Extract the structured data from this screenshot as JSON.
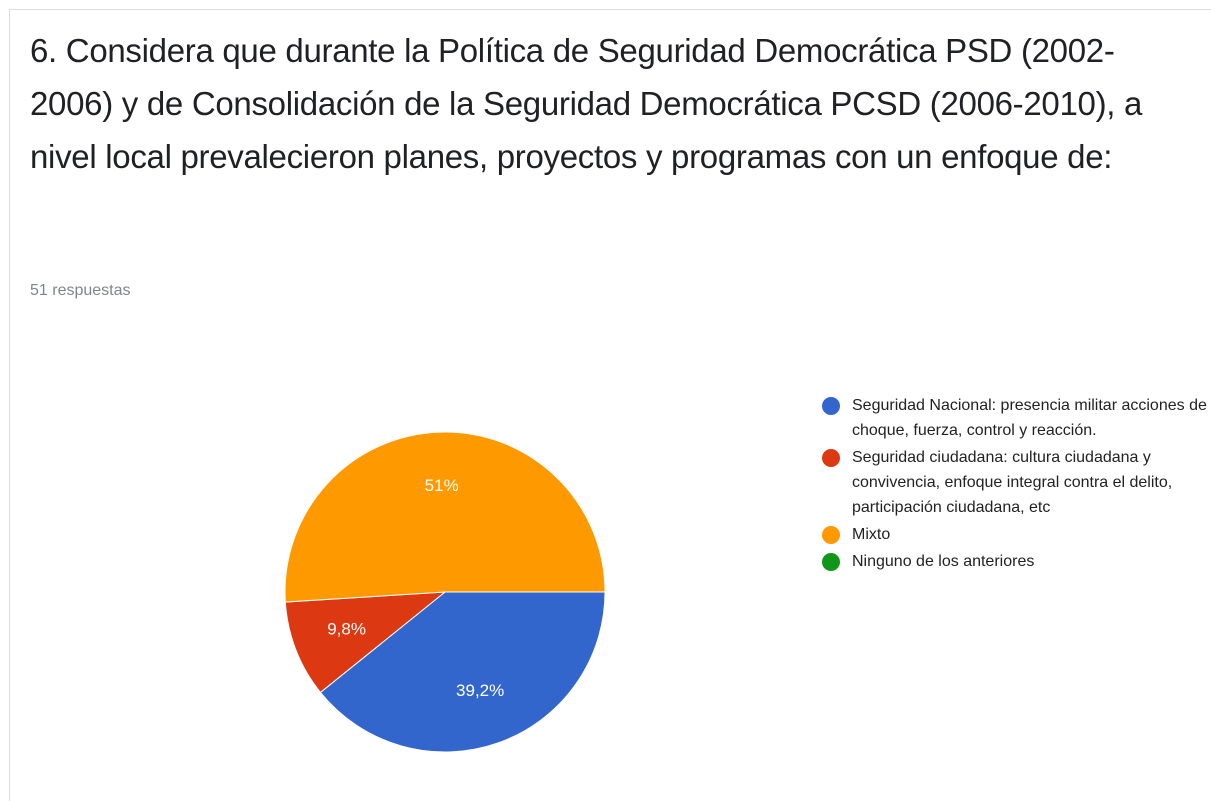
{
  "chart_data": {
    "type": "pie",
    "title": "6. Considera que durante la Política de Seguridad Democrática PSD (2002-2006) y de Consolidación de la Seguridad Democrática PCSD (2006-2010), a nivel local prevalecieron planes, proyectos y programas con un enfoque de:",
    "subtitle": "51 respuestas",
    "categories": [
      "Seguridad Nacional: presencia militar acciones de choque, fuerza, control y reacción.",
      "Seguridad ciudadana: cultura ciudadana y convivencia, enfoque integral contra el delito, participación ciudadana, etc",
      "Mixto",
      "Ninguno de los anteriores"
    ],
    "values": [
      39.2,
      9.8,
      51,
      0
    ],
    "value_labels": [
      "39,2%",
      "9,8%",
      "51%",
      null
    ],
    "colors": [
      "#3366cc",
      "#dc3912",
      "#ff9900",
      "#109618"
    ],
    "legend": "right"
  }
}
